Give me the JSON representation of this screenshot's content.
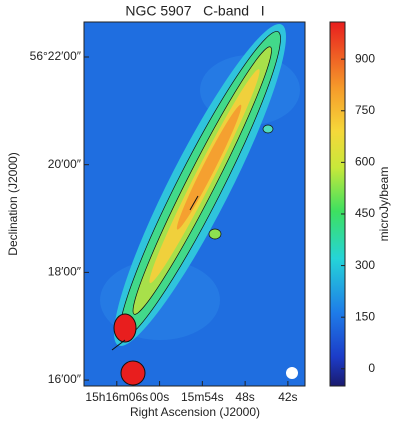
{
  "chart_data": {
    "type": "image",
    "title": "NGC 5907   C-band   I",
    "xlabel": "Right Ascension (J2000)",
    "ylabel": "Declination (J2000)",
    "xlim": [
      70.6,
      39.6
    ],
    "xticks": [
      {
        "value": 66,
        "label": "15h16m06s"
      },
      {
        "value": 60,
        "label": "00s"
      },
      {
        "value": 54,
        "label": "15m54s"
      },
      {
        "value": 48,
        "label": "48s"
      },
      {
        "value": 42,
        "label": "42s"
      }
    ],
    "ylim": [
      15.89,
      22.65
    ],
    "yticks": [
      {
        "value": 22,
        "label": "56°22′00″"
      },
      {
        "value": 20,
        "label": "20′00″"
      },
      {
        "value": 18,
        "label": "18′00″"
      },
      {
        "value": 16,
        "label": "16′00″"
      }
    ],
    "colorbar": {
      "label": "microJy/beam",
      "clim": [
        -50,
        1008
      ],
      "ticks": [
        0,
        150,
        300,
        450,
        600,
        750,
        900
      ]
    }
  }
}
